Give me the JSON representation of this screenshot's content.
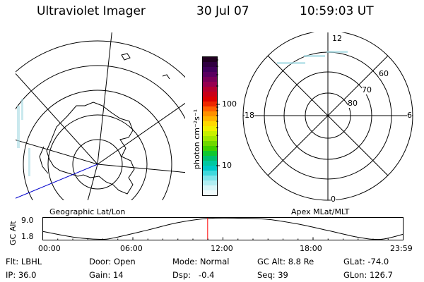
{
  "header": {
    "instrument": "Ultraviolet Imager",
    "date": "30 Jul 07",
    "time": "10:59:03 UT"
  },
  "colorbar": {
    "unit_label": "photon cm⁻²s⁻¹",
    "tick_100": "100",
    "tick_10": "10",
    "colors": [
      "#200020",
      "#300040",
      "#40005a",
      "#5a0060",
      "#780058",
      "#960050",
      "#b40030",
      "#c80018",
      "#dc0000",
      "#ee2800",
      "#ff6000",
      "#ff9000",
      "#ffb400",
      "#ffd800",
      "#f0f000",
      "#c8f000",
      "#a0e800",
      "#70d800",
      "#40d000",
      "#10c830",
      "#00c070",
      "#00c8a0",
      "#00c8c8",
      "#40d8dc",
      "#80e4ea",
      "#b0eef2",
      "#d8f6f8",
      "#f0fbfc"
    ]
  },
  "map_labels": {
    "left": "Geographic Lat/Lon",
    "right": "Apex MLat/MLT"
  },
  "polar_labels": {
    "top": "12",
    "bottom": "0",
    "left": "18",
    "right": "6",
    "lat60": "60",
    "lat70": "70",
    "lat80": "80"
  },
  "altitude_plot": {
    "ylabel": "GC Alt",
    "y_max": "9.0",
    "y_min": "1.8",
    "x_ticks": [
      "00:00",
      "06:00",
      "12:00",
      "18:00",
      "23:59"
    ],
    "marker_color": "#ff0000"
  },
  "chart_data": {
    "type": "line",
    "ylabel": "GC Alt",
    "yticks": [
      1.8,
      9.0
    ],
    "xticks": [
      "00:00",
      "06:00",
      "12:00",
      "18:00",
      "23:59"
    ],
    "x_hours": [
      0,
      2,
      3.9,
      5,
      7,
      9,
      11,
      13,
      15,
      17,
      19,
      21,
      22.5,
      23.99
    ],
    "y": [
      4.5,
      2.6,
      1.8,
      2.6,
      5.0,
      7.5,
      8.9,
      9.0,
      8.6,
      7.0,
      4.8,
      2.5,
      1.8,
      3.5
    ],
    "current_time_hours": 10.98
  },
  "status": {
    "flt": "Flt: LBHL",
    "door": "Door: Open",
    "mode": "Mode: Normal",
    "gc_alt": "GC Alt: 8.8 Re",
    "glat": "GLat: -74.0",
    "ip": "IP: 36.0",
    "gain": "Gain: 14",
    "dsp": "Dsp:   -0.4",
    "seq": "Seq: 39",
    "glon": "GLon: 126.7"
  }
}
